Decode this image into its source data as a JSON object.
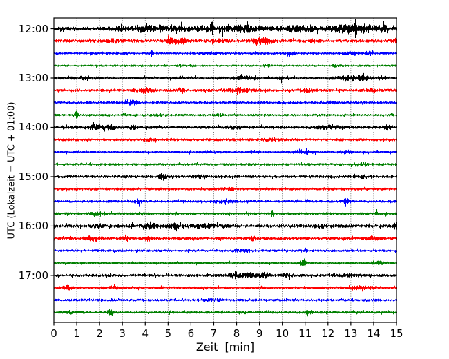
{
  "figure": {
    "background": "#ffffff",
    "frame_color": "#000000",
    "grid_color": "#5a5a5a"
  },
  "chart_data": {
    "type": "line",
    "subtype": "seismogram-dayplot",
    "title": "",
    "xlabel": "Zeit  [min]",
    "ylabel": "UTC (Lokalzeit = UTC + 01:00)",
    "xlim": [
      0,
      15
    ],
    "x_tick_labels": [
      "0",
      "1",
      "2",
      "3",
      "4",
      "5",
      "6",
      "7",
      "8",
      "9",
      "10",
      "11",
      "12",
      "13",
      "14",
      "15"
    ],
    "y_ticks": [
      {
        "label": "12:00",
        "row": 0
      },
      {
        "label": "13:00",
        "row": 4
      },
      {
        "label": "14:00",
        "row": 8
      },
      {
        "label": "15:00",
        "row": 12
      },
      {
        "label": "16:00",
        "row": 16
      },
      {
        "label": "17:00",
        "row": 20
      }
    ],
    "grid": {
      "vertical": "dotted, every 1 min",
      "horizontal": "none"
    },
    "legend": "none",
    "minutes_per_row": 15,
    "colors": {
      "black": "#000000",
      "red": "#ff0000",
      "blue": "#0000ff",
      "green": "#008000"
    },
    "traces": [
      {
        "start": "12:00",
        "color": "black",
        "base": 1.9,
        "events": [
          [
            9,
            1.0,
            5.5
          ],
          [
            2.9,
            1.5,
            0.25
          ],
          [
            3.9,
            2.5,
            0.4
          ],
          [
            4.6,
            2,
            0.3
          ],
          [
            5.6,
            2,
            0.5
          ],
          [
            6.5,
            2,
            0.3
          ],
          [
            6.9,
            6,
            0.06
          ],
          [
            7.4,
            2,
            0.25
          ],
          [
            8.3,
            2.5,
            0.35
          ],
          [
            10.6,
            2,
            0.4
          ],
          [
            11.2,
            1.5,
            0.3
          ],
          [
            12.6,
            2.5,
            0.5
          ],
          [
            13.2,
            6.5,
            0.05
          ],
          [
            13.6,
            3,
            0.5
          ],
          [
            14.4,
            2,
            0.25
          ]
        ]
      },
      {
        "start": "12:15",
        "color": "red",
        "base": 1.8,
        "events": [
          [
            2.6,
            1.2,
            0.3
          ],
          [
            5.2,
            2.8,
            0.3
          ],
          [
            5.7,
            2,
            0.2
          ],
          [
            7.2,
            1.2,
            0.4
          ],
          [
            9.1,
            3,
            0.45
          ],
          [
            11.4,
            1.2,
            0.3
          ],
          [
            14.9,
            2,
            0.12
          ]
        ]
      },
      {
        "start": "12:30",
        "color": "blue",
        "base": 1.3,
        "events": [
          [
            1.6,
            2.2,
            0.05
          ],
          [
            4.25,
            3.8,
            0.05
          ],
          [
            6.9,
            0.8,
            0.4
          ],
          [
            10.4,
            1,
            0.3
          ],
          [
            13.1,
            1.6,
            0.3
          ],
          [
            13.8,
            2,
            0.18
          ]
        ]
      },
      {
        "start": "12:45",
        "color": "green",
        "base": 1.2,
        "events": [
          [
            5.5,
            1.4,
            0.08
          ],
          [
            9.3,
            1.2,
            0.15
          ],
          [
            12.4,
            0.8,
            0.3
          ]
        ]
      },
      {
        "start": "13:00",
        "color": "black",
        "base": 1.6,
        "events": [
          [
            1.2,
            0.8,
            0.3
          ],
          [
            8.3,
            1.4,
            0.5
          ],
          [
            9.9,
            1.8,
            0.12
          ],
          [
            12.9,
            2.6,
            0.45
          ],
          [
            13.5,
            2,
            0.3
          ],
          [
            14.3,
            1.4,
            0.2
          ]
        ]
      },
      {
        "start": "13:15",
        "color": "red",
        "base": 1.6,
        "events": [
          [
            4.0,
            2.2,
            0.3
          ],
          [
            5.6,
            1.4,
            0.12
          ],
          [
            8.1,
            2.0,
            0.4
          ],
          [
            11.0,
            1.0,
            0.3
          ],
          [
            13.9,
            0.8,
            0.3
          ]
        ]
      },
      {
        "start": "13:30",
        "color": "blue",
        "base": 1.4,
        "events": [
          [
            3.4,
            1.8,
            0.3
          ],
          [
            7.9,
            1.4,
            0.1
          ],
          [
            12.1,
            0.8,
            0.25
          ]
        ]
      },
      {
        "start": "13:45",
        "color": "green",
        "base": 1.3,
        "events": [
          [
            0.95,
            4.5,
            0.09
          ],
          [
            4.6,
            0.9,
            0.2
          ],
          [
            7.3,
            0.8,
            0.15
          ]
        ]
      },
      {
        "start": "14:00",
        "color": "black",
        "base": 1.7,
        "events": [
          [
            1.8,
            2,
            0.4
          ],
          [
            2.5,
            2,
            0.25
          ],
          [
            3.5,
            2.6,
            0.1
          ],
          [
            7.9,
            0.8,
            0.4
          ],
          [
            12.0,
            1.2,
            0.5
          ],
          [
            14.6,
            1.8,
            0.2
          ]
        ]
      },
      {
        "start": "14:15",
        "color": "red",
        "base": 1.5,
        "events": [
          [
            4.2,
            0.8,
            0.3
          ],
          [
            9.5,
            0.6,
            0.4
          ]
        ]
      },
      {
        "start": "14:30",
        "color": "blue",
        "base": 1.4,
        "events": [
          [
            6.8,
            1.2,
            0.3
          ],
          [
            8.8,
            1.2,
            0.25
          ],
          [
            10.9,
            1.6,
            0.4
          ],
          [
            11.05,
            2.6,
            0.05
          ],
          [
            12.8,
            1.2,
            0.3
          ]
        ]
      },
      {
        "start": "14:45",
        "color": "green",
        "base": 1.4,
        "events": [
          [
            13.3,
            1.6,
            0.22
          ],
          [
            13.65,
            1.3,
            0.12
          ]
        ]
      },
      {
        "start": "15:00",
        "color": "black",
        "base": 1.6,
        "events": [
          [
            4.75,
            3.4,
            0.16
          ],
          [
            6.3,
            1,
            0.3
          ],
          [
            13.6,
            1.3,
            0.3
          ]
        ]
      },
      {
        "start": "15:15",
        "color": "red",
        "base": 1.5,
        "events": [
          [
            7.5,
            0.8,
            0.4
          ],
          [
            11.9,
            1.3,
            0.07
          ]
        ]
      },
      {
        "start": "15:30",
        "color": "blue",
        "base": 1.4,
        "events": [
          [
            3.7,
            2,
            0.16
          ],
          [
            7.4,
            1.2,
            0.5
          ],
          [
            12.8,
            2,
            0.22
          ]
        ]
      },
      {
        "start": "15:45",
        "color": "green",
        "base": 1.4,
        "events": [
          [
            2.0,
            1.2,
            0.4
          ],
          [
            9.55,
            3,
            0.05
          ],
          [
            14.1,
            2.6,
            0.05
          ],
          [
            14.5,
            2.2,
            0.05
          ]
        ]
      },
      {
        "start": "16:00",
        "color": "black",
        "base": 1.8,
        "events": [
          [
            2.0,
            1.3,
            0.3
          ],
          [
            3.4,
            2.6,
            0.06
          ],
          [
            4.2,
            2.6,
            0.3
          ],
          [
            5.3,
            2.2,
            0.3
          ],
          [
            6.5,
            1.6,
            0.7
          ],
          [
            11.6,
            1.2,
            0.3
          ],
          [
            14.95,
            3.4,
            0.06
          ]
        ]
      },
      {
        "start": "16:15",
        "color": "red",
        "base": 1.6,
        "events": [
          [
            1.7,
            2,
            0.3
          ],
          [
            3.1,
            1.3,
            0.2
          ],
          [
            4.1,
            2,
            0.15
          ],
          [
            8.7,
            1.6,
            0.1
          ],
          [
            13.9,
            0.8,
            0.4
          ]
        ]
      },
      {
        "start": "16:30",
        "color": "blue",
        "base": 1.4,
        "events": [
          [
            8.3,
            1,
            0.4
          ],
          [
            11.0,
            2.2,
            0.06
          ]
        ]
      },
      {
        "start": "16:45",
        "color": "green",
        "base": 1.4,
        "events": [
          [
            10.9,
            2,
            0.2
          ],
          [
            14.2,
            1.3,
            0.3
          ]
        ]
      },
      {
        "start": "17:00",
        "color": "black",
        "base": 1.6,
        "events": [
          [
            7.9,
            2.4,
            0.25
          ],
          [
            8.5,
            2.2,
            0.3
          ],
          [
            9.2,
            2.2,
            0.2
          ],
          [
            10.2,
            1.8,
            0.2
          ],
          [
            13.0,
            1.1,
            0.4
          ]
        ]
      },
      {
        "start": "17:15",
        "color": "red",
        "base": 1.5,
        "events": [
          [
            0.6,
            1.6,
            0.25
          ],
          [
            2.6,
            1.3,
            0.15
          ],
          [
            13.5,
            1.4,
            0.5
          ]
        ]
      },
      {
        "start": "17:30",
        "color": "blue",
        "base": 1.4,
        "events": [
          [
            7.0,
            0.9,
            0.4
          ]
        ]
      },
      {
        "start": "17:45",
        "color": "green",
        "base": 1.4,
        "events": [
          [
            0.6,
            1.3,
            0.2
          ],
          [
            2.45,
            2,
            0.15
          ],
          [
            11.2,
            1.1,
            0.3
          ]
        ]
      }
    ]
  }
}
